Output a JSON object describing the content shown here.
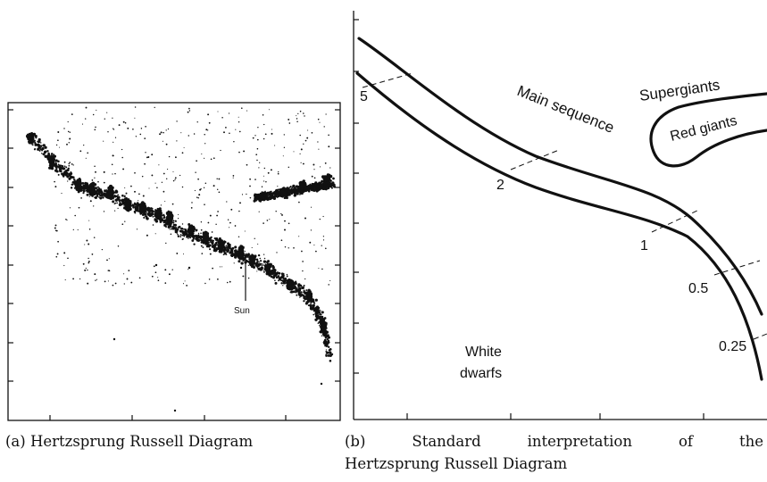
{
  "figure_a": {
    "sun_label": "Sun",
    "caption": "(a) Hertzsprung Russell Diagram"
  },
  "figure_b": {
    "regions": {
      "supergiants": "Supergiants",
      "red_giants": "Red giants",
      "main_sequence": "Main sequence",
      "white_dwarfs_line1": "White",
      "white_dwarfs_line2": "dwarfs"
    },
    "mass_labels": [
      "5",
      "2",
      "1",
      "0.5",
      "0.25"
    ],
    "caption_line1": [
      "(b)",
      "Standard",
      "interpretation",
      "of",
      "the"
    ],
    "caption_line2": "Hertzsprung Russell Diagram"
  },
  "colors": {
    "ink": "#111111",
    "background": "#ffffff"
  }
}
